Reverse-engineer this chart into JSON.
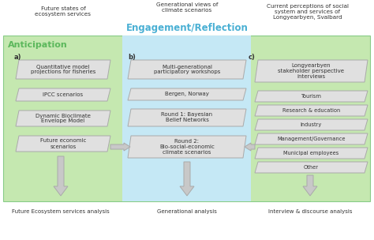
{
  "bg_white": "#ffffff",
  "green_bg": "#c5e8b0",
  "blue_bg": "#c5e8f5",
  "box_fill": "#e0e0e0",
  "box_edge": "#aaaaaa",
  "arrow_fill": "#c8c8c8",
  "arrow_edge": "#aaaaaa",
  "green_text": "#5cb85c",
  "blue_text": "#4ab0d4",
  "dark_text": "#333333",
  "title_top_left": "Future states of\necosystem services",
  "title_top_center": "Generational views of\nclimate scenarios",
  "title_top_right": "Current perceptions of social\nsystem and services of\nLongyearbyen, Svalbard",
  "engagement_text": "Engagement/Reflection",
  "anticipation_text": "Anticipation",
  "label_a": "a)",
  "label_b": "b)",
  "label_c": "c)",
  "box_a1": "Quantitative model\nprojections for fisheries",
  "box_a2": "IPCC scenarios",
  "box_a3": "Dynamic Bioclimate\nEnvelope Model",
  "box_a4": "Future economic\nscenarios",
  "box_b1": "Multi-generational\nparticipatory workshops",
  "box_b2": "Bergen, Norway",
  "box_b3": "Round 1: Bayesian\nBelief Networks",
  "box_b4": "Round 2:\nBio-social-economic\nclimate scenarios",
  "box_c1": "Longyearbyen\nstakeholder perspective\ninterviews",
  "box_c2": "Tourism",
  "box_c3": "Research & education",
  "box_c4": "Industry",
  "box_c5": "Management/Governance",
  "box_c6": "Municipal employees",
  "box_c7": "Other",
  "footer_left": "Future Ecosystem services analysis",
  "footer_center": "Generational analysis",
  "footer_right": "Interview & discourse analysis",
  "figw": 4.74,
  "figh": 3.04,
  "dpi": 100
}
